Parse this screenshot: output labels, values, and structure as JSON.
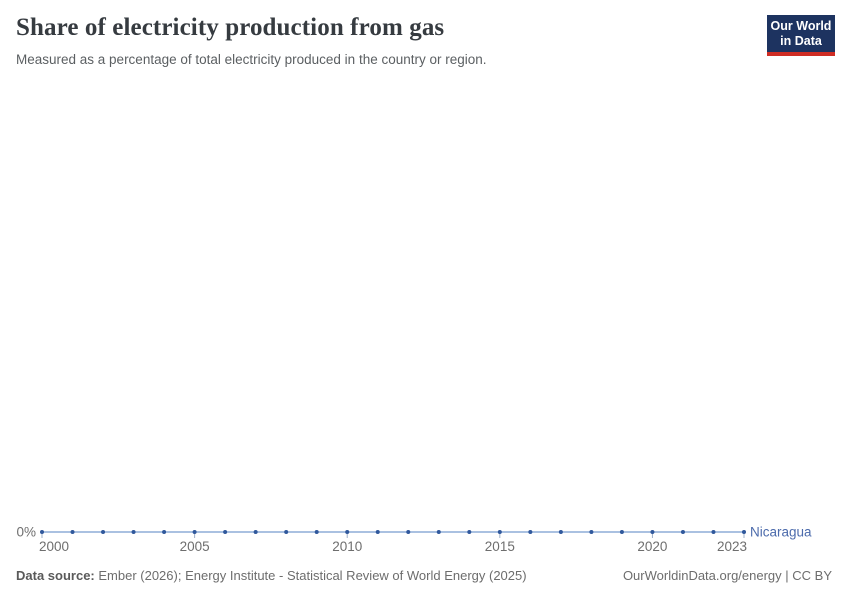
{
  "header": {
    "title": "Share of electricity production from gas",
    "subtitle": "Measured as a percentage of total electricity produced in the country or region."
  },
  "logo": {
    "line1": "Our World",
    "line2": "in Data",
    "bg_color": "#1d3360",
    "accent_color": "#cf2d24"
  },
  "chart_data": {
    "type": "line",
    "title": "Share of electricity production from gas",
    "subtitle": "Measured as a percentage of total electricity produced in the country or region.",
    "x": [
      2000,
      2001,
      2002,
      2003,
      2004,
      2005,
      2006,
      2007,
      2008,
      2009,
      2010,
      2011,
      2012,
      2013,
      2014,
      2015,
      2016,
      2017,
      2018,
      2019,
      2020,
      2021,
      2022,
      2023
    ],
    "series": [
      {
        "name": "Nicaragua",
        "label_color": "#4c6bac",
        "line_color": "#9eb8dd",
        "marker_color": "#30589c",
        "values": [
          0,
          0,
          0,
          0,
          0,
          0,
          0,
          0,
          0,
          0,
          0,
          0,
          0,
          0,
          0,
          0,
          0,
          0,
          0,
          0,
          0,
          0,
          0,
          0
        ]
      }
    ],
    "x_tick_labels": [
      2000,
      2005,
      2010,
      2015,
      2020,
      2023
    ],
    "y_tick_labels": [
      "0%"
    ],
    "xlim": [
      2000,
      2023
    ],
    "grid": false,
    "legend_position": "right-of-line-end",
    "axis_text_color": "#6e6e6e",
    "tick_mark_color": "#9fb0c8"
  },
  "footer": {
    "source_label": "Data source:",
    "source_text": " Ember (2026); Energy Institute - Statistical Review of World Energy (2025)",
    "right_text": "OurWorldinData.org/energy | CC BY"
  }
}
